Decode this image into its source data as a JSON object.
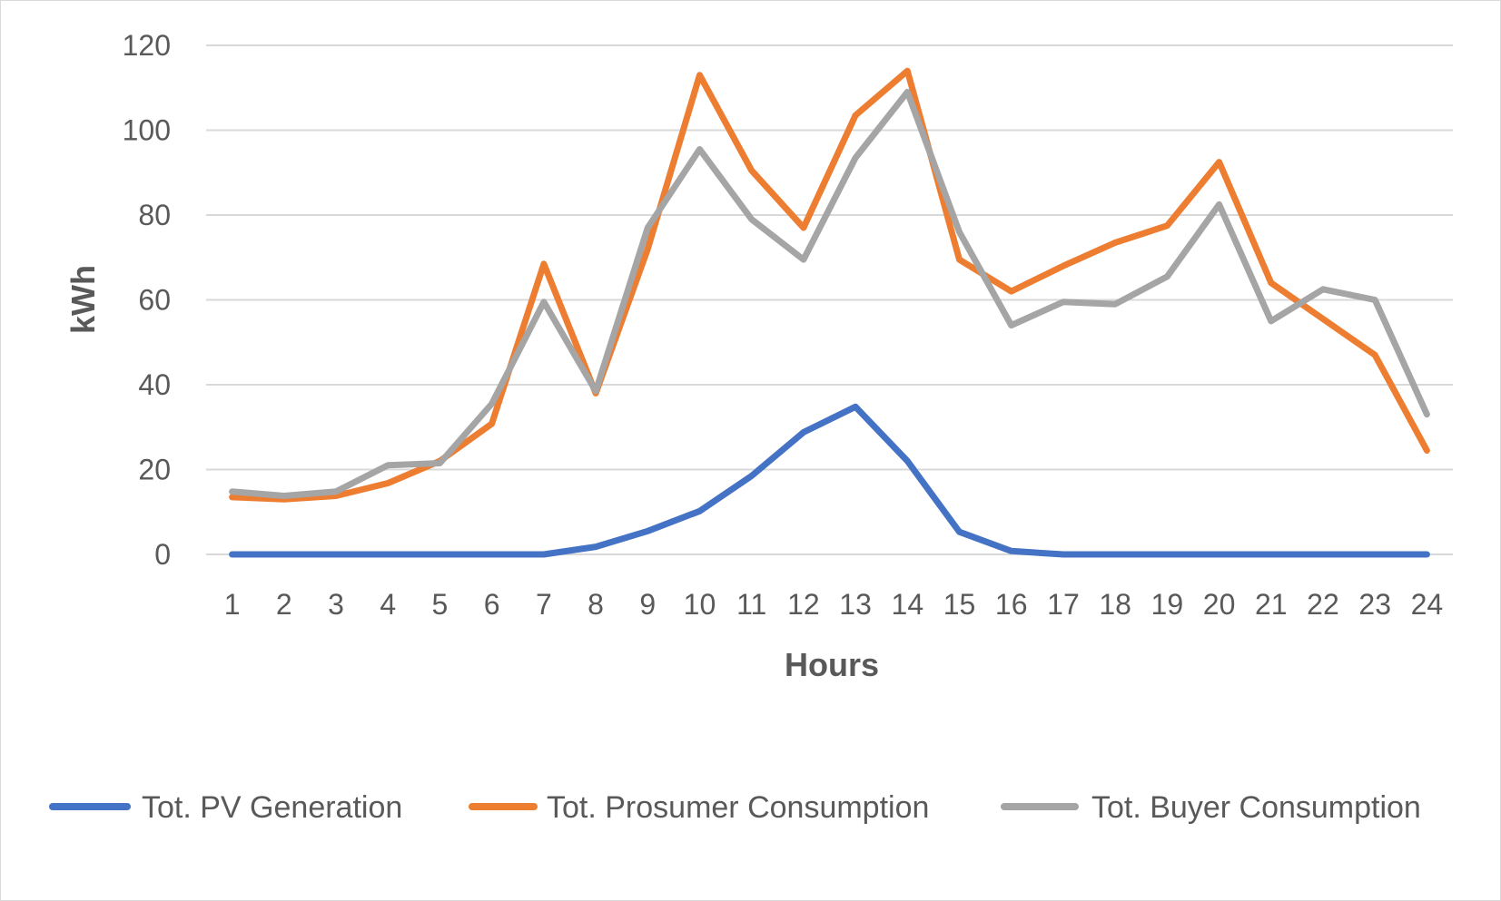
{
  "chart_data": {
    "type": "line",
    "title": "",
    "xlabel": "Hours",
    "ylabel": "kWh",
    "ylim": [
      0,
      120
    ],
    "yticks": [
      0,
      20,
      40,
      60,
      80,
      100,
      120
    ],
    "grid": true,
    "legend_position": "bottom",
    "categories": [
      "1",
      "2",
      "3",
      "4",
      "5",
      "6",
      "7",
      "8",
      "9",
      "10",
      "11",
      "12",
      "13",
      "14",
      "15",
      "16",
      "17",
      "18",
      "19",
      "20",
      "21",
      "22",
      "23",
      "24"
    ],
    "series": [
      {
        "name": "Tot. PV Generation",
        "color": "#4472c4",
        "values": [
          0,
          0,
          0,
          0,
          0,
          0,
          0,
          1.8,
          5.5,
          10.2,
          18.5,
          28.8,
          34.8,
          22.0,
          5.3,
          0.8,
          0,
          0,
          0,
          0,
          0,
          0,
          0,
          0
        ]
      },
      {
        "name": "Tot. Prosumer Consumption",
        "color": "#ed7d31",
        "values": [
          13.5,
          13.0,
          13.8,
          16.8,
          22.0,
          30.8,
          68.5,
          38.0,
          72.0,
          113.0,
          90.5,
          77.0,
          103.5,
          114.0,
          69.5,
          62.0,
          68.0,
          73.5,
          77.5,
          92.5,
          64.0,
          55.5,
          47.0,
          24.5
        ]
      },
      {
        "name": "Tot. Buyer Consumption",
        "color": "#a5a5a5",
        "values": [
          14.8,
          13.8,
          14.8,
          21.0,
          21.5,
          35.5,
          59.5,
          38.5,
          77.0,
          95.5,
          79.0,
          69.5,
          93.5,
          109.0,
          76.0,
          54.0,
          59.5,
          59.0,
          65.5,
          82.5,
          55.0,
          62.5,
          60.0,
          33.0
        ]
      }
    ]
  }
}
